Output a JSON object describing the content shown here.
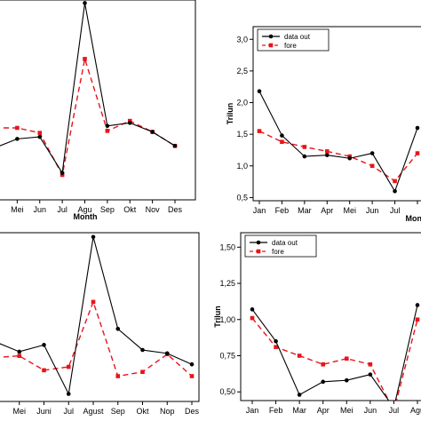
{
  "chart_data": [
    {
      "type": "line",
      "categories": [
        "",
        "Mei",
        "Jun",
        "Jul",
        "Agu",
        "Sep",
        "Okt",
        "Nov",
        "Des"
      ],
      "xlabel": "Month",
      "ylabel": "",
      "ylim": [
        0,
        1
      ],
      "yticks": [],
      "legend": false,
      "series": [
        {
          "name": "",
          "color": "#000000",
          "marker": "circle",
          "dash": false,
          "values": [
            0.26,
            0.305,
            0.315,
            0.135,
            0.985,
            0.37,
            0.385,
            0.34,
            0.27
          ]
        },
        {
          "name": "",
          "color": "#e8141b",
          "marker": "square",
          "dash": true,
          "values": [
            0.36,
            0.36,
            0.335,
            0.125,
            0.705,
            0.345,
            0.395,
            0.34,
            0.27
          ]
        }
      ]
    },
    {
      "type": "line",
      "categories": [
        "Jan",
        "Feb",
        "Mar",
        "Apr",
        "Mei",
        "Jun",
        "Jul",
        "Month"
      ],
      "xlabel": "Month",
      "ylabel": "Trilun",
      "ylim": [
        0.45,
        3.2
      ],
      "yticks": [
        "0,5",
        "1,0",
        "1,5",
        "2,0",
        "2,5",
        "3,0"
      ],
      "ytick_values": [
        0.5,
        1.0,
        1.5,
        2.0,
        2.5,
        3.0
      ],
      "legend": true,
      "legend_position": "top-left",
      "series": [
        {
          "name": "data out",
          "color": "#000000",
          "marker": "circle",
          "dash": false,
          "values": [
            2.18,
            1.48,
            1.15,
            1.17,
            1.12,
            1.2,
            0.6,
            1.6
          ]
        },
        {
          "name": "fore",
          "color": "#e8141b",
          "marker": "square",
          "dash": true,
          "values": [
            1.55,
            1.38,
            1.3,
            1.23,
            1.15,
            1.0,
            0.76,
            1.2
          ]
        }
      ]
    },
    {
      "type": "line",
      "categories": [
        "",
        "Mei",
        "Juni",
        "Jul",
        "Agust",
        "Sep",
        "Okt",
        "Nop",
        "Des"
      ],
      "xlabel": "",
      "ylabel": "",
      "ylim": [
        0,
        1
      ],
      "yticks": [],
      "legend": false,
      "series": [
        {
          "name": "",
          "color": "#000000",
          "marker": "circle",
          "dash": false,
          "values": [
            0.355,
            0.295,
            0.335,
            0.045,
            0.975,
            0.43,
            0.305,
            0.285,
            0.22
          ]
        },
        {
          "name": "",
          "color": "#e8141b",
          "marker": "square",
          "dash": true,
          "values": [
            0.26,
            0.27,
            0.185,
            0.205,
            0.59,
            0.15,
            0.175,
            0.28,
            0.15
          ]
        }
      ]
    },
    {
      "type": "line",
      "categories": [
        "Jan",
        "Feb",
        "Mar",
        "Apr",
        "Mei",
        "Jun",
        "Jul",
        "Agu"
      ],
      "xlabel": "",
      "ylabel": "Trilun",
      "ylim": [
        0.44,
        1.6
      ],
      "yticks": [
        "0,50",
        "0,75",
        "1,00",
        "1,25",
        "1,50"
      ],
      "ytick_values": [
        0.5,
        0.75,
        1.0,
        1.25,
        1.5
      ],
      "legend": true,
      "legend_position": "top-left",
      "series": [
        {
          "name": "data out",
          "color": "#000000",
          "marker": "circle",
          "dash": false,
          "values": [
            1.07,
            0.85,
            0.48,
            0.57,
            0.58,
            0.62,
            0.39,
            1.1
          ]
        },
        {
          "name": "fore",
          "color": "#e8141b",
          "marker": "square",
          "dash": true,
          "values": [
            1.01,
            0.81,
            0.75,
            0.69,
            0.73,
            0.69,
            0.37,
            1.0
          ]
        }
      ]
    }
  ]
}
